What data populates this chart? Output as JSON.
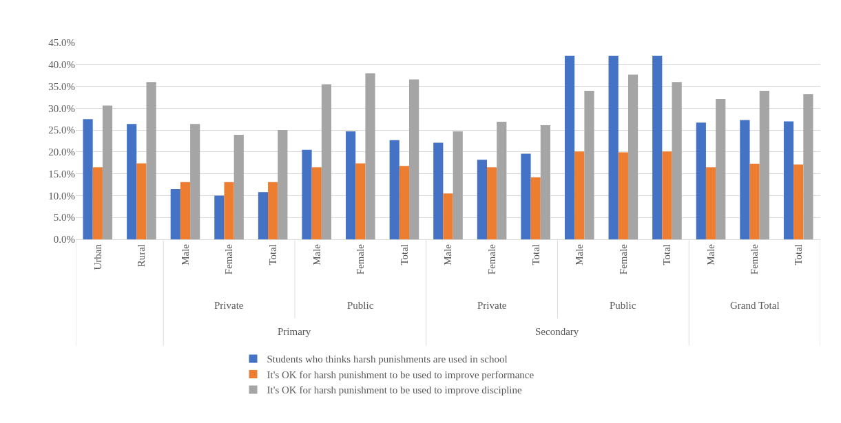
{
  "chart_data": {
    "type": "bar",
    "categories": [
      "Urban",
      "Rural",
      "Male",
      "Female",
      "Total",
      "Male",
      "Female",
      "Total",
      "Male",
      "Female",
      "Total",
      "Male",
      "Female",
      "Total",
      "Male",
      "Female",
      "Total"
    ],
    "series": [
      {
        "name": "Students who thinks harsh punishments are used in school",
        "color": "#4472c4",
        "values": [
          27.5,
          26.4,
          11.5,
          10.0,
          10.8,
          20.5,
          24.7,
          22.7,
          22.1,
          18.2,
          19.6,
          42.0,
          42.0,
          42.0,
          26.7,
          27.3,
          27.0
        ]
      },
      {
        "name": "It's OK for harsh punishment to be used to improve performance",
        "color": "#ed7d31",
        "values": [
          16.5,
          17.4,
          13.1,
          13.1,
          13.1,
          16.5,
          17.4,
          16.8,
          10.5,
          16.5,
          14.2,
          20.1,
          19.9,
          20.1,
          16.5,
          17.3,
          17.1
        ]
      },
      {
        "name": "It's OK for harsh punishment to be used to improve discipline",
        "color": "#a5a5a5",
        "values": [
          30.6,
          36.0,
          26.4,
          23.9,
          25.0,
          35.5,
          38.0,
          36.6,
          24.7,
          26.9,
          26.1,
          34.0,
          37.7,
          36.0,
          32.1,
          34.0,
          33.2
        ]
      }
    ],
    "annotations": [
      "Private",
      "Public",
      "Private",
      "Public",
      "Grand Total",
      "Primary",
      "Secondary"
    ],
    "ylim": [
      0,
      45
    ],
    "yticks": [
      {
        "value": 0,
        "label": "0.0%"
      },
      {
        "value": 5,
        "label": "5.0%"
      },
      {
        "value": 10,
        "label": "10.0%"
      },
      {
        "value": 15,
        "label": "15.0%"
      },
      {
        "value": 20,
        "label": "20.0%"
      },
      {
        "value": 25,
        "label": "25.0%"
      },
      {
        "value": 30,
        "label": "30.0%"
      },
      {
        "value": 35,
        "label": "35.0%"
      },
      {
        "value": 40,
        "label": "40.0%"
      },
      {
        "value": 45,
        "label": "45.0%"
      }
    ],
    "grid": "y",
    "legend": "bottom"
  }
}
